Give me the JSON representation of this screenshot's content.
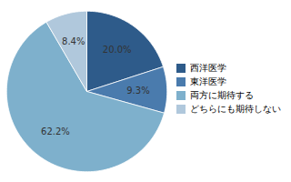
{
  "chart_data": {
    "type": "pie",
    "categories": [
      "西洋医学",
      "東洋医学",
      "両方に期待する",
      "どちらにも期待しない"
    ],
    "values": [
      20.0,
      9.3,
      62.2,
      8.4
    ],
    "value_labels": [
      "20.0%",
      "9.3%",
      "62.2%",
      "8.4%"
    ],
    "colors": [
      "#2E5B8A",
      "#4A7BAD",
      "#7EB0CC",
      "#B0C8DC"
    ],
    "data_labels": true,
    "legend": "right"
  }
}
